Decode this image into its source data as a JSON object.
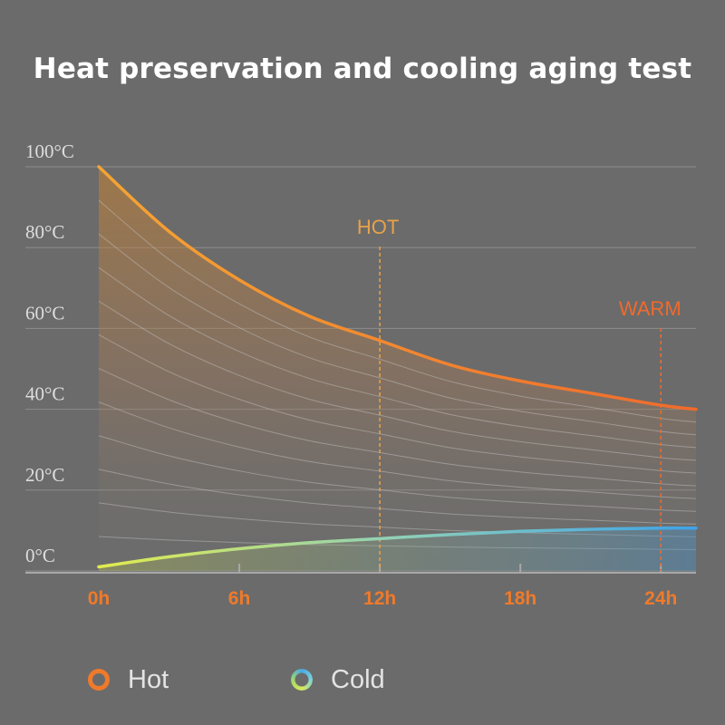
{
  "title": "Heat preservation and cooling aging test",
  "colors": {
    "background": "#6b6b6b",
    "hot_start": "#f4a534",
    "hot_end": "#f06a2c",
    "cold_start": "#e2ec4e",
    "cold_end": "#3fa3e8",
    "tick_label": "#f07a2a",
    "hot_marker": "#e8a24a",
    "warm_marker": "#f06a2c",
    "grid": "#8c8c8c",
    "axis_label": "#dddddd"
  },
  "legend": {
    "hot_label": "Hot",
    "cold_label": "Cold"
  },
  "chart_data": {
    "type": "line",
    "title": "Heat preservation and cooling aging test",
    "xlabel": "",
    "ylabel": "",
    "xlim": [
      0,
      25.5
    ],
    "ylim": [
      0,
      100
    ],
    "x_ticks": [
      0,
      6,
      12,
      18,
      24
    ],
    "x_tick_labels": [
      "0h",
      "6h",
      "12h",
      "18h",
      "24h"
    ],
    "y_ticks": [
      0,
      20,
      40,
      60,
      80,
      100
    ],
    "y_tick_labels": [
      "0°C",
      "20°C",
      "40°C",
      "60°C",
      "80°C",
      "100°C"
    ],
    "grid": true,
    "series": [
      {
        "name": "Hot",
        "x": [
          0,
          3,
          6,
          9,
          12,
          15,
          18,
          21,
          24,
          25.5
        ],
        "y": [
          100,
          84,
          72,
          63,
          57,
          51,
          47,
          44,
          41,
          40
        ]
      },
      {
        "name": "Cold",
        "x": [
          0,
          3,
          6,
          9,
          12,
          15,
          18,
          21,
          24,
          25.5
        ],
        "y": [
          1,
          3.5,
          5.5,
          7,
          8,
          9,
          9.8,
          10.3,
          10.6,
          10.6
        ]
      }
    ],
    "annotations": [
      {
        "label": "HOT",
        "x": 12
      },
      {
        "label": "WARM",
        "x": 24
      }
    ]
  }
}
